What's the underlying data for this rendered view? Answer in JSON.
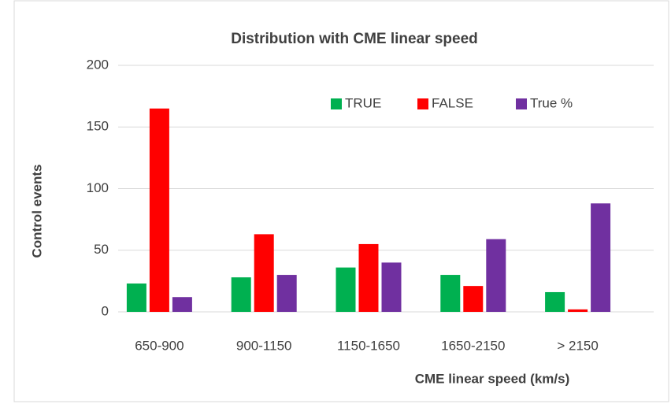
{
  "chart_data": {
    "type": "bar",
    "title": "Distribution with CME linear speed",
    "x_label": "CME linear speed (km/s)",
    "y_label": "Control events",
    "categories": [
      "650-900",
      "900-1150",
      "1150-1650",
      "1650-2150",
      "> 2150"
    ],
    "series": [
      {
        "name": "TRUE",
        "color": "#00b050",
        "values": [
          23,
          28,
          36,
          30,
          16
        ]
      },
      {
        "name": "FALSE",
        "color": "#ff0000",
        "values": [
          165,
          63,
          55,
          21,
          2
        ]
      },
      {
        "name": "True %",
        "color": "#7030a0",
        "values": [
          12,
          30,
          40,
          59,
          88
        ]
      }
    ],
    "ylim": [
      0,
      200
    ],
    "yticks": [
      0,
      50,
      100,
      150,
      200
    ],
    "grid": true,
    "legend": "top-right"
  }
}
